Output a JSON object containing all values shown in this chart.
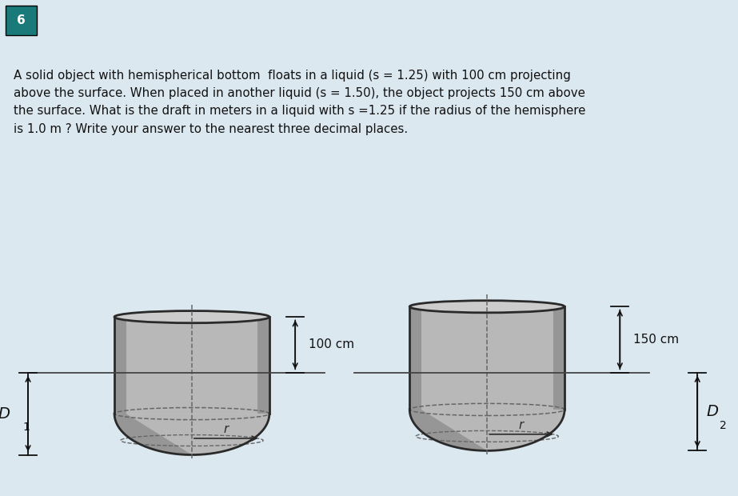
{
  "background_color": "#dce8f0",
  "header_color": "#1a7a7a",
  "header_text": "6",
  "problem_text": "A solid object with hemispherical bottom  floats in a liquid (s = 1.25) with 100 cm projecting\nabove the surface. When placed in another liquid (s = 1.50), the object projects 150 cm above\nthe surface. What is the draft in meters in a liquid with s =1.25 if the radius of the hemisphere\nis 1.0 m ? Write your answer to the nearest three decimal places.",
  "body_bg": "#f5f8fa",
  "cylinder_fill": "#b8b8b8",
  "cylinder_dark": "#2a2a2a",
  "cylinder_rim": "#cccccc",
  "shade_dark": "#808080",
  "annotation_color": "#111111",
  "label_100": "100 cm",
  "label_150": "150 cm",
  "label_D1": "D",
  "label_D1_sub": "1",
  "label_D2": "D",
  "label_D2_sub": "2",
  "label_r": "r",
  "dashed_color": "#666666",
  "waterline_color": "#444444"
}
